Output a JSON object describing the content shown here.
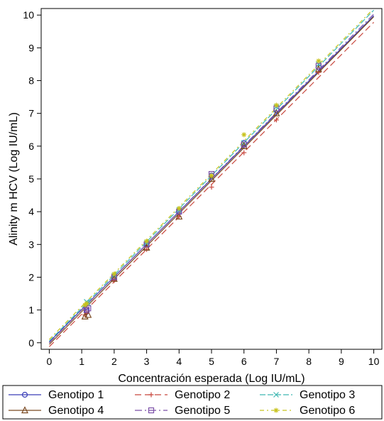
{
  "chart_data": {
    "type": "scatter",
    "title": "",
    "xlabel": "Concentración esperada (Log IU/mL)",
    "ylabel": "Alinity m HCV (Log IU/mL)",
    "xlim": [
      -0.25,
      10.25
    ],
    "ylim": [
      -0.2,
      10.2
    ],
    "xticks": [
      "0",
      "1",
      "2",
      "3",
      "4",
      "5",
      "6",
      "7",
      "8",
      "9",
      "10"
    ],
    "yticks": [
      "0",
      "1",
      "2",
      "3",
      "4",
      "5",
      "6",
      "7",
      "8",
      "9",
      "10"
    ],
    "grid": false,
    "legend_position": "bottom",
    "series": [
      {
        "name": "Genotipo 1",
        "color": "#3b3fb8",
        "marker": "circle",
        "dash": "",
        "fit": [
          0.02,
          0.996
        ],
        "x": [
          1.15,
          1.15,
          2.0,
          3.0,
          4.0,
          5.0,
          6.0,
          7.0,
          8.3
        ],
        "y": [
          1.0,
          0.95,
          2.0,
          3.0,
          4.0,
          5.1,
          6.1,
          7.1,
          8.4
        ]
      },
      {
        "name": "Genotipo 2",
        "color": "#c8463c",
        "marker": "plus",
        "dash": "9,5",
        "fit": [
          -0.12,
          0.99
        ],
        "x": [
          1.1,
          1.15,
          2.0,
          3.0,
          4.0,
          5.0,
          6.0,
          7.0,
          8.3
        ],
        "y": [
          0.85,
          0.9,
          1.9,
          2.85,
          3.85,
          4.75,
          5.8,
          6.8,
          8.25
        ]
      },
      {
        "name": "Genotipo 3",
        "color": "#3fb7b2",
        "marker": "x",
        "dash": "8,3",
        "fit": [
          0.05,
          1.01
        ],
        "x": [
          1.15,
          1.2,
          2.0,
          3.0,
          4.0,
          5.0,
          6.0,
          7.0,
          8.3
        ],
        "y": [
          1.25,
          1.2,
          2.05,
          3.05,
          4.05,
          5.05,
          6.1,
          7.2,
          8.5
        ]
      },
      {
        "name": "Genotipo 4",
        "color": "#7a4a22",
        "marker": "triangle",
        "dash": "",
        "fit": [
          -0.05,
          1.0
        ],
        "x": [
          1.1,
          1.2,
          2.0,
          3.0,
          4.0,
          5.0,
          6.0,
          7.0,
          8.3
        ],
        "y": [
          0.8,
          0.85,
          1.95,
          2.9,
          3.85,
          5.0,
          6.0,
          7.0,
          8.35
        ]
      },
      {
        "name": "Genotipo 5",
        "color": "#7b4fa8",
        "marker": "square",
        "dash": "10,4,2,4",
        "fit": [
          0.0,
          1.003
        ],
        "x": [
          1.15,
          1.2,
          2.0,
          3.0,
          4.0,
          5.0,
          6.0,
          7.0,
          8.3
        ],
        "y": [
          1.0,
          1.05,
          2.0,
          3.0,
          4.0,
          5.15,
          6.05,
          7.15,
          8.45
        ]
      },
      {
        "name": "Genotipo 6",
        "color": "#c8c31e",
        "marker": "asterisk",
        "dash": "6,4,2,4",
        "fit": [
          0.1,
          1.01
        ],
        "x": [
          1.1,
          1.15,
          2.0,
          3.0,
          4.0,
          5.0,
          6.0,
          7.0,
          8.3
        ],
        "y": [
          1.15,
          1.2,
          2.1,
          3.1,
          4.1,
          5.1,
          6.35,
          7.25,
          8.6
        ]
      }
    ]
  }
}
